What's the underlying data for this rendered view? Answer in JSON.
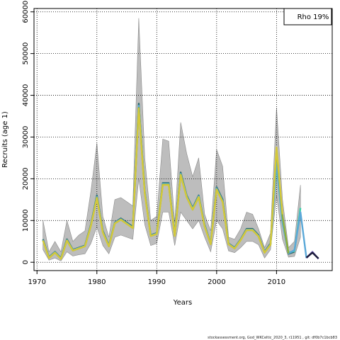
{
  "chart_data": {
    "type": "line",
    "xlabel": "Years",
    "ylabel": "Recruits (age 1)",
    "legend": {
      "label": "Rho 19%",
      "placement": "top-right"
    },
    "xlim": [
      1969.5,
      2019.3
    ],
    "ylim": [
      -2000,
      60800
    ],
    "xticks": [
      1970,
      1980,
      1990,
      2000,
      2010
    ],
    "yticks": [
      0,
      10000,
      20000,
      30000,
      40000,
      50000,
      60000
    ],
    "grid": true,
    "confidence_band": {
      "x": [
        1971,
        1972,
        1973,
        1974,
        1975,
        1976,
        1977,
        1978,
        1979,
        1980,
        1981,
        1982,
        1983,
        1984,
        1985,
        1986,
        1987,
        1988,
        1989,
        1990,
        1991,
        1992,
        1993,
        1994,
        1995,
        1996,
        1997,
        1998,
        1999,
        2000,
        2001,
        2002,
        2003,
        2004,
        2005,
        2006,
        2007,
        2008,
        2009,
        2010,
        2011,
        2012,
        2013,
        2014
      ],
      "lower": [
        3000,
        500,
        1000,
        300,
        2500,
        1500,
        1800,
        2000,
        4500,
        8500,
        4000,
        2000,
        6000,
        6500,
        6000,
        5500,
        20000,
        9000,
        4000,
        4500,
        12000,
        12000,
        4000,
        12000,
        10000,
        8000,
        10000,
        6000,
        2500,
        10000,
        8000,
        2700,
        2300,
        3500,
        5000,
        5000,
        4200,
        1000,
        3000,
        16000,
        5500,
        1200,
        1400,
        6000
      ],
      "upper": [
        10000,
        2500,
        5000,
        2500,
        10000,
        5000,
        6500,
        7500,
        17000,
        28500,
        11000,
        6000,
        15000,
        15500,
        14500,
        13500,
        58500,
        25000,
        10000,
        11000,
        29500,
        29000,
        9500,
        33500,
        26000,
        20500,
        25000,
        11500,
        7500,
        27000,
        23000,
        6000,
        5500,
        8000,
        12000,
        11500,
        8000,
        3500,
        7000,
        37000,
        15000,
        3500,
        5000,
        18500
      ]
    },
    "series": [
      {
        "name": "",
        "color": "#2e6b6e",
        "x": [
          1971,
          1972,
          1973,
          1974,
          1975,
          1976,
          1977,
          1978,
          1979,
          1980,
          1981,
          1982,
          1983,
          1984,
          1985,
          1986,
          1987,
          1988,
          1989,
          1990,
          1991,
          1992,
          1993,
          1994,
          1995,
          1996,
          1997,
          1998,
          1999,
          2000,
          2001,
          2002,
          2003,
          2004,
          2005,
          2006,
          2007,
          2008,
          2009,
          2010,
          2011,
          2012,
          2013
        ],
        "y": [
          5500,
          1200,
          2500,
          1000,
          5500,
          3000,
          3500,
          4000,
          9000,
          16000,
          7500,
          4000,
          9500,
          10500,
          9500,
          8500,
          38000,
          17000,
          6500,
          7000,
          19000,
          19000,
          6500,
          21500,
          16000,
          13000,
          16000,
          9000,
          4500,
          18000,
          15000,
          4500,
          3500,
          5500,
          8000,
          8000,
          6500,
          2500,
          4500,
          26000,
          10000,
          2000,
          2500
        ]
      },
      {
        "name": "",
        "color": "#37d0a8",
        "x": [
          1971,
          1972,
          1973,
          1974,
          1975,
          1976,
          1977,
          1978,
          1979,
          1980,
          1981,
          1982,
          1983,
          1984,
          1985,
          1986,
          1987,
          1988,
          1989,
          1990,
          1991,
          1992,
          1993,
          1994,
          1995,
          1996,
          1997,
          1998,
          1999,
          2000,
          2001,
          2002,
          2003,
          2004,
          2005,
          2006,
          2007,
          2008,
          2009,
          2010,
          2011,
          2012,
          2013,
          2014
        ],
        "y": [
          5300,
          1100,
          2400,
          900,
          5300,
          2900,
          3400,
          3900,
          8800,
          15700,
          7300,
          3900,
          9400,
          10300,
          9300,
          8300,
          37500,
          16800,
          6400,
          6900,
          18800,
          18800,
          6400,
          21200,
          15800,
          12800,
          15800,
          8800,
          4400,
          17700,
          14700,
          4400,
          3400,
          5400,
          7800,
          7800,
          6300,
          2400,
          4300,
          23500,
          9500,
          2300,
          2700,
          13000
        ]
      },
      {
        "name": "",
        "color": "#5aa8d8",
        "x": [
          1971,
          1972,
          1973,
          1974,
          1975,
          1976,
          1977,
          1978,
          1979,
          1980,
          1981,
          1982,
          1983,
          1984,
          1985,
          1986,
          1987,
          1988,
          1989,
          1990,
          1991,
          1992,
          1993,
          1994,
          1995,
          1996,
          1997,
          1998,
          1999,
          2000,
          2001,
          2002,
          2003,
          2004,
          2005,
          2006,
          2007,
          2008,
          2009,
          2010,
          2011,
          2012,
          2013,
          2014,
          2015
        ],
        "y": [
          5300,
          1100,
          2400,
          900,
          5300,
          2900,
          3400,
          3900,
          8800,
          15700,
          7300,
          3900,
          9400,
          10300,
          9300,
          8300,
          37500,
          16800,
          6400,
          6900,
          18800,
          18800,
          6400,
          21200,
          15800,
          12800,
          15800,
          8800,
          4400,
          17700,
          14700,
          4400,
          3400,
          5400,
          7800,
          7800,
          6300,
          2400,
          4300,
          24000,
          9700,
          2100,
          2900,
          12000,
          1000
        ]
      },
      {
        "name": "",
        "color": "#7b68b8",
        "x": [
          2015,
          2016,
          2017
        ],
        "y": [
          1000,
          2500,
          800
        ]
      },
      {
        "name": "",
        "color": "#1a1a3a",
        "x": [
          2015,
          2016,
          2017
        ],
        "y": [
          1100,
          2300,
          900
        ]
      },
      {
        "name": "",
        "color": "#8fb03a",
        "x": [
          1971,
          1972,
          1973,
          1974,
          1975,
          1976,
          1977,
          1978,
          1979,
          1980,
          1981,
          1982,
          1983,
          1984,
          1985,
          1986,
          1987,
          1988,
          1989,
          1990,
          1991,
          1992,
          1993,
          1994,
          1995,
          1996,
          1997,
          1998,
          1999,
          2000,
          2001,
          2002,
          2003,
          2004,
          2005,
          2006,
          2007,
          2008,
          2009,
          2010,
          2011,
          2012
        ],
        "y": [
          5200,
          1000,
          2300,
          800,
          5200,
          2800,
          3300,
          3800,
          8700,
          15500,
          7200,
          3800,
          9300,
          10200,
          9200,
          8200,
          37000,
          16600,
          6300,
          6800,
          18600,
          18600,
          6300,
          21000,
          15600,
          12600,
          15600,
          8600,
          4300,
          17500,
          14500,
          4300,
          3300,
          5300,
          7700,
          7700,
          6200,
          2300,
          4200,
          27000,
          11000,
          2100
        ]
      },
      {
        "name": "",
        "color": "#d4c83a",
        "x": [
          1971,
          1972,
          1973,
          1974,
          1975,
          1976,
          1977,
          1978,
          1979,
          1980,
          1981,
          1982,
          1983,
          1984,
          1985,
          1986,
          1987,
          1988,
          1989,
          1990,
          1991,
          1992,
          1993,
          1994,
          1995,
          1996,
          1997,
          1998,
          1999,
          2000,
          2001,
          2002,
          2003,
          2004,
          2005,
          2006,
          2007,
          2008,
          2009,
          2010,
          2011
        ],
        "y": [
          5200,
          1000,
          2300,
          800,
          5200,
          2800,
          3300,
          3800,
          8700,
          15400,
          7100,
          3800,
          9300,
          10200,
          9200,
          8200,
          36800,
          16500,
          6300,
          6800,
          18500,
          18500,
          6300,
          20900,
          15600,
          12600,
          15600,
          8600,
          4300,
          17400,
          14400,
          4300,
          3300,
          5300,
          7700,
          7700,
          6200,
          2300,
          4200,
          27500,
          11500
        ]
      }
    ]
  },
  "footer": {
    "text": "stockassessment.org, God_WKCeltic_2020_3, r11951 , git: df0b7c1bcb83"
  }
}
